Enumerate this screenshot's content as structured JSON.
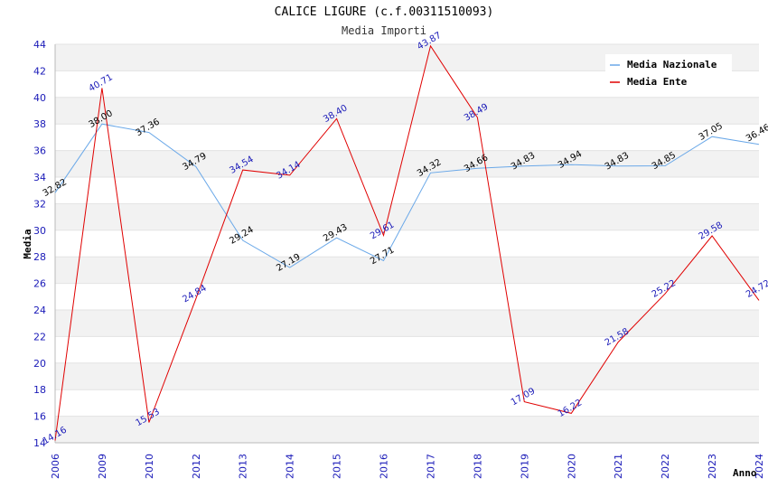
{
  "chart_data": {
    "type": "line",
    "title": "CALICE LIGURE (c.f.00311510093)",
    "subtitle": "Media Importi",
    "xlabel": "Anno",
    "ylabel": "Media",
    "ylim": [
      14,
      44
    ],
    "yticks": [
      14,
      16,
      18,
      20,
      22,
      24,
      26,
      28,
      30,
      32,
      34,
      36,
      38,
      40,
      42,
      44
    ],
    "categories": [
      "2006",
      "2009",
      "2010",
      "2012",
      "2013",
      "2014",
      "2015",
      "2016",
      "2017",
      "2018",
      "2019",
      "2020",
      "2021",
      "2022",
      "2023",
      "2024"
    ],
    "series": [
      {
        "name": "Media Nazionale",
        "color": "#6aa8e8",
        "values": [
          32.82,
          38.0,
          37.36,
          34.79,
          29.24,
          27.19,
          29.43,
          27.71,
          34.32,
          34.66,
          34.83,
          34.94,
          34.83,
          34.85,
          37.05,
          36.46
        ],
        "labels": [
          "32.82",
          "38.00",
          "37.36",
          "34.79",
          "29.24",
          "27.19",
          "29.43",
          "27.71",
          "34.32",
          "34.66",
          "34.83",
          "34.94",
          "34.83",
          "34.85",
          "37.05",
          "36.46"
        ]
      },
      {
        "name": "Media Ente",
        "color": "#e00000",
        "values": [
          14.16,
          40.71,
          15.53,
          24.84,
          34.54,
          34.14,
          38.4,
          29.61,
          43.87,
          38.49,
          17.09,
          16.22,
          21.58,
          25.22,
          29.58,
          24.72
        ],
        "labels": [
          "14.16",
          "40.71",
          "15.53",
          "24.84",
          "34.54",
          "34.14",
          "38.40",
          "29.61",
          "43.87",
          "38.49",
          "17.09",
          "16.22",
          "21.58",
          "25.22",
          "29.58",
          "24.72"
        ]
      }
    ],
    "legend_position": "top-right",
    "grid": "alternating horizontal bands"
  }
}
